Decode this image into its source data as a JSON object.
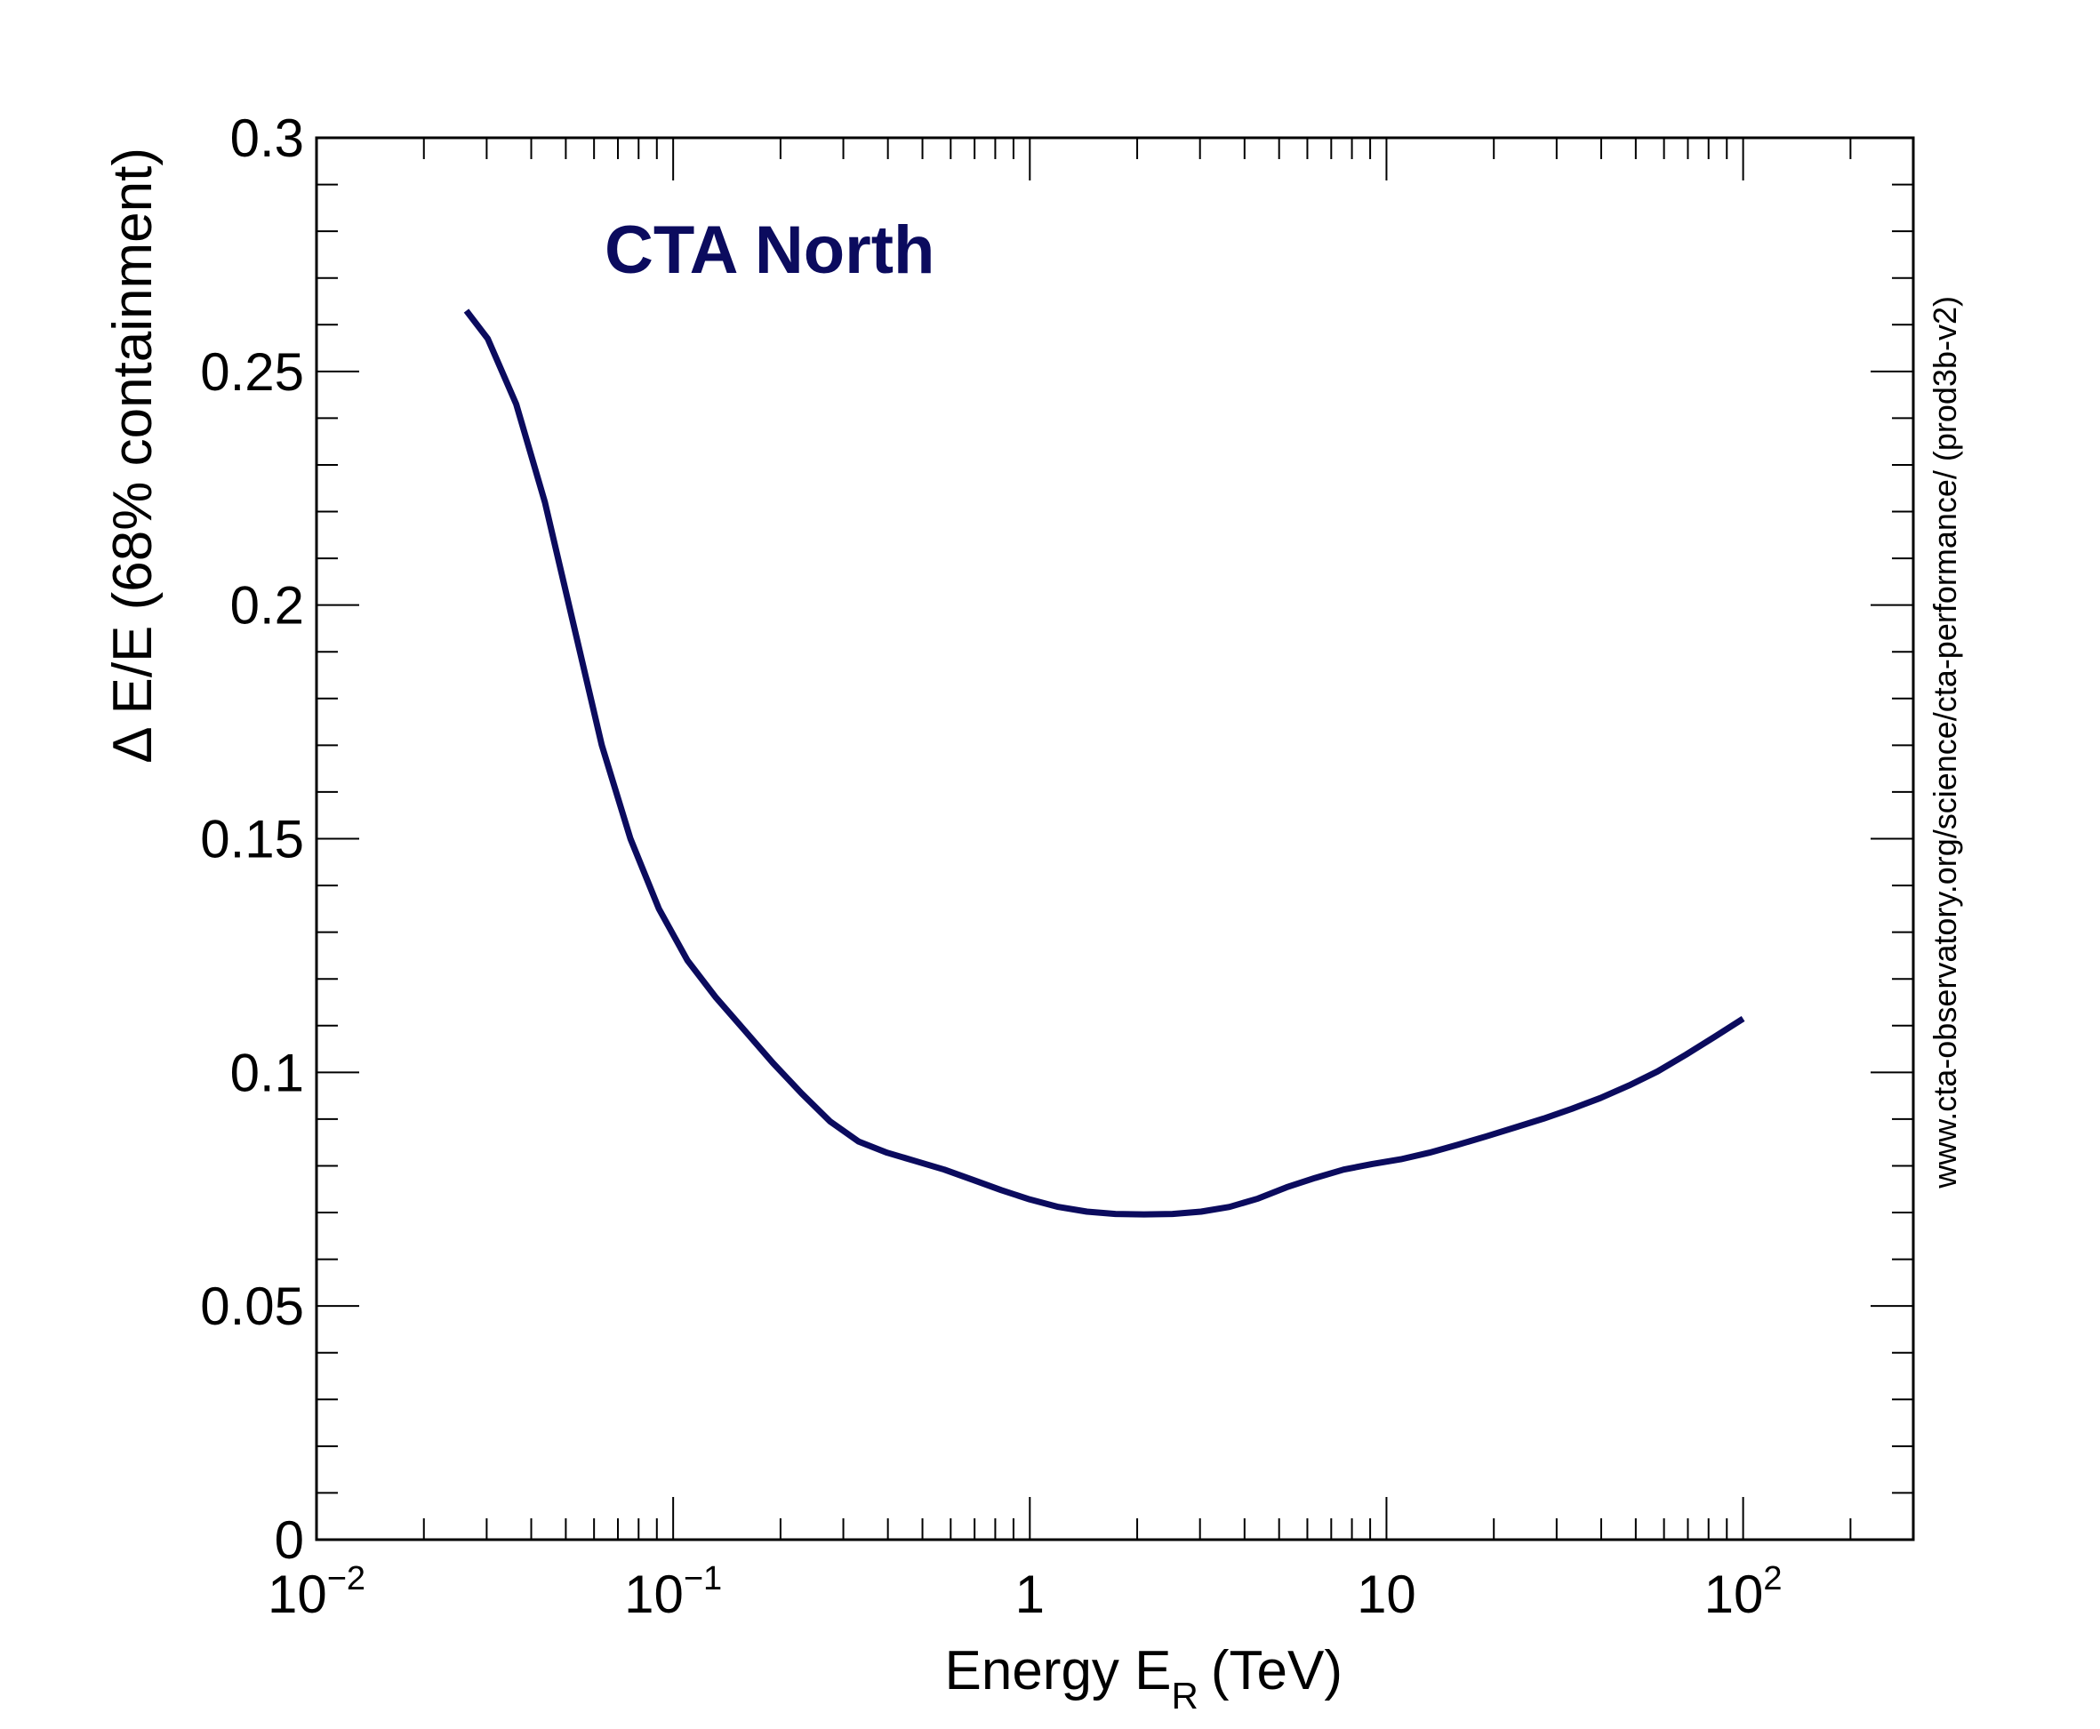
{
  "chart_data": {
    "type": "line",
    "title": "CTA North",
    "title_color": "#0b0b5e",
    "line_color": "#0b0b5e",
    "xlabel": {
      "main": "Energy E",
      "subscript": "R",
      "unit": "(TeV)"
    },
    "ylabel": "Δ E/E (68% containment)",
    "annotation": "www.cta-observatory.org/science/cta-performance/ (prod3b-v2)",
    "x_scale": "log",
    "xlim": [
      0.01,
      300
    ],
    "ylim": [
      0,
      0.3
    ],
    "grid": false,
    "x_tick_labels": [
      {
        "value": 0.01,
        "base": "10",
        "exp": "−2"
      },
      {
        "value": 0.1,
        "base": "10",
        "exp": "−1"
      },
      {
        "value": 1,
        "base": "1",
        "exp": ""
      },
      {
        "value": 10,
        "base": "10",
        "exp": ""
      },
      {
        "value": 100,
        "base": "10",
        "exp": "2"
      }
    ],
    "y_tick_labels": [
      {
        "value": 0,
        "label": "0"
      },
      {
        "value": 0.05,
        "label": "0.05"
      },
      {
        "value": 0.1,
        "label": "0.1"
      },
      {
        "value": 0.15,
        "label": "0.15"
      },
      {
        "value": 0.2,
        "label": "0.2"
      },
      {
        "value": 0.25,
        "label": "0.25"
      },
      {
        "value": 0.3,
        "label": "0.3"
      }
    ],
    "series": [
      {
        "x": [
          0.0263,
          0.0302,
          0.0363,
          0.0437,
          0.0525,
          0.0631,
          0.0759,
          0.0912,
          0.1096,
          0.1318,
          0.1585,
          0.1905,
          0.2291,
          0.2754,
          0.3311,
          0.3981,
          0.4786,
          0.5754,
          0.6918,
          0.8318,
          1.0,
          1.2023,
          1.4454,
          1.7378,
          2.0893,
          2.5119,
          3.02,
          3.6308,
          4.3652,
          5.2481,
          6.3096,
          7.5858,
          9.1201,
          10.965,
          13.183,
          15.849,
          19.055,
          22.909,
          27.542,
          33.113,
          39.811,
          47.863,
          57.544,
          69.183,
          83.176,
          100.0
        ],
        "y": [
          0.263,
          0.257,
          0.243,
          0.222,
          0.196,
          0.17,
          0.15,
          0.135,
          0.124,
          0.116,
          0.109,
          0.102,
          0.0955,
          0.0895,
          0.0852,
          0.0828,
          0.081,
          0.0792,
          0.077,
          0.0748,
          0.0728,
          0.0712,
          0.0702,
          0.0697,
          0.0696,
          0.0697,
          0.0702,
          0.0712,
          0.073,
          0.0754,
          0.0774,
          0.0792,
          0.0804,
          0.0814,
          0.0828,
          0.0845,
          0.0863,
          0.0882,
          0.0901,
          0.0922,
          0.0945,
          0.0972,
          0.1002,
          0.1038,
          0.1076,
          0.1115
        ]
      }
    ]
  }
}
